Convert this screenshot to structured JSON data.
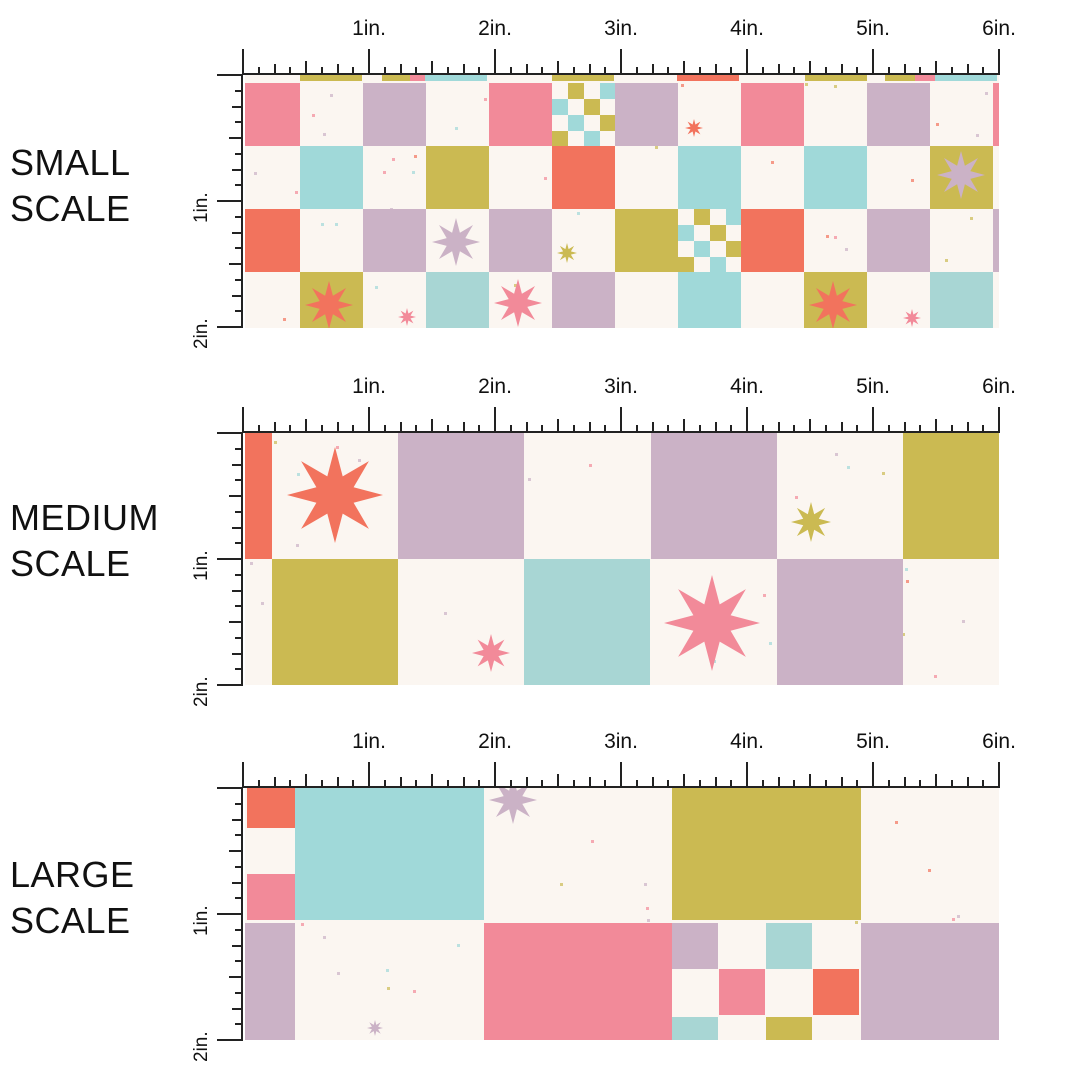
{
  "ruler": {
    "inch_labels": [
      "1in.",
      "2in.",
      "3in.",
      "4in.",
      "5in.",
      "6in."
    ],
    "vertical_labels": [
      "1in.",
      "2in."
    ]
  },
  "sections": [
    {
      "id": "small",
      "line1": "SMALL",
      "line2": "SCALE"
    },
    {
      "id": "medium",
      "line1": "MEDIUM",
      "line2": "SCALE"
    },
    {
      "id": "large",
      "line1": "LARGE",
      "line2": "SCALE"
    }
  ],
  "colors": {
    "cream": "#fbf6f1",
    "pink": "#f28a99",
    "mauve": "#cbb2c6",
    "aqua": "#a0d9d9",
    "olive": "#cbba52",
    "coral": "#f2735d",
    "teal_soft": "#a8d6d4"
  },
  "icons": {
    "star": "eight-point-star-icon"
  }
}
